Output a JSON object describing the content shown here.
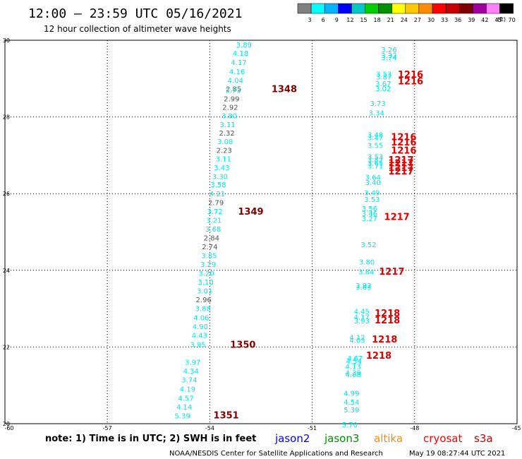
{
  "header": {
    "title": "12:00 – 23:59 UTC 05/16/2021",
    "subtitle": "12 hour collection of altimeter wave heights"
  },
  "colorbar": {
    "labels": [
      "3",
      "6",
      "9",
      "12",
      "15",
      "18",
      "21",
      "24",
      "27",
      "30",
      "33",
      "36",
      "39",
      "42",
      "45",
      "70"
    ],
    "unit": "(ft)",
    "colors": [
      "#808080",
      "#00ffff",
      "#00b4ff",
      "#0000ff",
      "#00c8c8",
      "#00d000",
      "#009000",
      "#ffff00",
      "#ffc800",
      "#ff8c00",
      "#ff0000",
      "#c80000",
      "#800000",
      "#a000a0",
      "#ff80ff",
      "#000000"
    ]
  },
  "axes": {
    "y_labels": [
      "30",
      "28",
      "26",
      "24",
      "22",
      "20"
    ],
    "x_labels": [
      "-60",
      "-57",
      "-54",
      "-51",
      "-48",
      "-45"
    ]
  },
  "wave_colors": {
    "cyan": "#00e6e6",
    "gray": "#555555",
    "red": "#e00000",
    "darkred": "#800000"
  },
  "observations": [
    {
      "lon": -53.0,
      "lat": 29.88,
      "value": "3.89",
      "color": "cyan"
    },
    {
      "lon": -53.1,
      "lat": 29.66,
      "value": "4.18",
      "color": "cyan"
    },
    {
      "lon": -53.15,
      "lat": 29.42,
      "value": "4.17",
      "color": "cyan"
    },
    {
      "lon": -53.2,
      "lat": 29.18,
      "value": "4.16",
      "color": "cyan"
    },
    {
      "lon": -53.25,
      "lat": 28.95,
      "value": "4.04",
      "color": "cyan"
    },
    {
      "lon": -53.3,
      "lat": 28.73,
      "value": "2.85",
      "color": "gray"
    },
    {
      "lon": -53.32,
      "lat": 28.69,
      "value": "3.73",
      "color": "cyan"
    },
    {
      "lon": -53.36,
      "lat": 28.47,
      "value": "2.99",
      "color": "gray"
    },
    {
      "lon": -53.4,
      "lat": 28.25,
      "value": "2.92",
      "color": "gray"
    },
    {
      "lon": -53.43,
      "lat": 28.03,
      "value": "3.80",
      "color": "cyan"
    },
    {
      "lon": -53.48,
      "lat": 27.8,
      "value": "3.11",
      "color": "cyan"
    },
    {
      "lon": -53.5,
      "lat": 27.58,
      "value": "2.32",
      "color": "gray"
    },
    {
      "lon": -53.55,
      "lat": 27.36,
      "value": "3.08",
      "color": "cyan"
    },
    {
      "lon": -53.58,
      "lat": 27.13,
      "value": "2.23",
      "color": "gray"
    },
    {
      "lon": -53.6,
      "lat": 26.91,
      "value": "3.11",
      "color": "cyan"
    },
    {
      "lon": -53.65,
      "lat": 26.68,
      "value": "3.43",
      "color": "cyan"
    },
    {
      "lon": -53.7,
      "lat": 26.45,
      "value": "3.30",
      "color": "cyan"
    },
    {
      "lon": -53.75,
      "lat": 26.23,
      "value": "3.58",
      "color": "cyan"
    },
    {
      "lon": -53.78,
      "lat": 25.99,
      "value": "4.21",
      "color": "cyan"
    },
    {
      "lon": -53.82,
      "lat": 25.76,
      "value": "2.79",
      "color": "gray"
    },
    {
      "lon": -53.85,
      "lat": 25.53,
      "value": "3.72",
      "color": "cyan"
    },
    {
      "lon": -53.88,
      "lat": 25.3,
      "value": "3.21",
      "color": "cyan"
    },
    {
      "lon": -53.9,
      "lat": 25.07,
      "value": "3.68",
      "color": "cyan"
    },
    {
      "lon": -53.95,
      "lat": 24.84,
      "value": "2.84",
      "color": "gray"
    },
    {
      "lon": -54.0,
      "lat": 24.61,
      "value": "2.74",
      "color": "gray"
    },
    {
      "lon": -54.02,
      "lat": 24.38,
      "value": "3.85",
      "color": "cyan"
    },
    {
      "lon": -54.05,
      "lat": 24.15,
      "value": "3.29",
      "color": "cyan"
    },
    {
      "lon": -54.1,
      "lat": 23.92,
      "value": "3.20",
      "color": "cyan"
    },
    {
      "lon": -54.12,
      "lat": 23.69,
      "value": "3.10",
      "color": "cyan"
    },
    {
      "lon": -54.15,
      "lat": 23.46,
      "value": "3.01",
      "color": "cyan"
    },
    {
      "lon": -54.18,
      "lat": 23.23,
      "value": "2.96",
      "color": "gray"
    },
    {
      "lon": -54.2,
      "lat": 23.0,
      "value": "3.88",
      "color": "cyan"
    },
    {
      "lon": -54.25,
      "lat": 22.76,
      "value": "4.06",
      "color": "cyan"
    },
    {
      "lon": -54.28,
      "lat": 22.53,
      "value": "4.90",
      "color": "cyan"
    },
    {
      "lon": -54.3,
      "lat": 22.3,
      "value": "4.43",
      "color": "cyan"
    },
    {
      "lon": -54.35,
      "lat": 22.06,
      "value": "3.95",
      "color": "cyan"
    },
    {
      "lon": -54.5,
      "lat": 21.6,
      "value": "3.97",
      "color": "cyan"
    },
    {
      "lon": -54.55,
      "lat": 21.37,
      "value": "4.34",
      "color": "cyan"
    },
    {
      "lon": -54.6,
      "lat": 21.14,
      "value": "3.74",
      "color": "cyan"
    },
    {
      "lon": -54.65,
      "lat": 20.9,
      "value": "4.19",
      "color": "cyan"
    },
    {
      "lon": -54.7,
      "lat": 20.66,
      "value": "4.57",
      "color": "cyan"
    },
    {
      "lon": -54.75,
      "lat": 20.43,
      "value": "4.14",
      "color": "cyan"
    },
    {
      "lon": -54.8,
      "lat": 20.2,
      "value": "5.39",
      "color": "cyan"
    },
    {
      "lon": -48.75,
      "lat": 29.75,
      "value": "3.26",
      "color": "cyan"
    },
    {
      "lon": -48.75,
      "lat": 29.6,
      "value": "3.32",
      "color": "cyan"
    },
    {
      "lon": -48.75,
      "lat": 29.55,
      "value": "3.74",
      "color": "cyan"
    },
    {
      "lon": -48.9,
      "lat": 29.12,
      "value": "3.53",
      "color": "cyan"
    },
    {
      "lon": -48.9,
      "lat": 29.04,
      "value": "3.87",
      "color": "cyan"
    },
    {
      "lon": -48.92,
      "lat": 28.87,
      "value": "3.67",
      "color": "cyan"
    },
    {
      "lon": -48.92,
      "lat": 28.74,
      "value": "3.02",
      "color": "cyan"
    },
    {
      "lon": -49.08,
      "lat": 28.35,
      "value": "3.73",
      "color": "cyan"
    },
    {
      "lon": -49.12,
      "lat": 28.1,
      "value": "3.34",
      "color": "cyan"
    },
    {
      "lon": -49.15,
      "lat": 27.53,
      "value": "3.48",
      "color": "cyan"
    },
    {
      "lon": -49.15,
      "lat": 27.46,
      "value": "3.47",
      "color": "cyan"
    },
    {
      "lon": -49.15,
      "lat": 27.26,
      "value": "3.55",
      "color": "cyan"
    },
    {
      "lon": -49.15,
      "lat": 26.96,
      "value": "3.53",
      "color": "cyan"
    },
    {
      "lon": -49.15,
      "lat": 26.88,
      "value": "3.82",
      "color": "cyan"
    },
    {
      "lon": -49.15,
      "lat": 26.8,
      "value": "3.65",
      "color": "cyan"
    },
    {
      "lon": -49.15,
      "lat": 26.72,
      "value": "3.71",
      "color": "cyan"
    },
    {
      "lon": -49.22,
      "lat": 26.43,
      "value": "3.64",
      "color": "cyan"
    },
    {
      "lon": -49.22,
      "lat": 26.29,
      "value": "3.40",
      "color": "cyan"
    },
    {
      "lon": -49.25,
      "lat": 26.02,
      "value": "3.49",
      "color": "cyan"
    },
    {
      "lon": -49.25,
      "lat": 25.85,
      "value": "3.53",
      "color": "cyan"
    },
    {
      "lon": -49.32,
      "lat": 25.61,
      "value": "3.56",
      "color": "cyan"
    },
    {
      "lon": -49.32,
      "lat": 25.48,
      "value": "3.46",
      "color": "cyan"
    },
    {
      "lon": -49.32,
      "lat": 25.35,
      "value": "3.27",
      "color": "cyan"
    },
    {
      "lon": -49.35,
      "lat": 24.67,
      "value": "3.52",
      "color": "cyan"
    },
    {
      "lon": -49.4,
      "lat": 24.22,
      "value": "3.80",
      "color": "cyan"
    },
    {
      "lon": -49.42,
      "lat": 23.96,
      "value": "3.84",
      "color": "cyan"
    },
    {
      "lon": -49.5,
      "lat": 23.6,
      "value": "3.92",
      "color": "cyan"
    },
    {
      "lon": -49.5,
      "lat": 23.55,
      "value": "3.63",
      "color": "cyan"
    },
    {
      "lon": -49.55,
      "lat": 22.93,
      "value": "4.45",
      "color": "cyan"
    },
    {
      "lon": -49.55,
      "lat": 22.78,
      "value": "4.17",
      "color": "cyan"
    },
    {
      "lon": -49.55,
      "lat": 22.68,
      "value": "3.93",
      "color": "cyan"
    },
    {
      "lon": -49.68,
      "lat": 22.25,
      "value": "4.12",
      "color": "cyan"
    },
    {
      "lon": -49.68,
      "lat": 22.17,
      "value": "4.03",
      "color": "cyan"
    },
    {
      "lon": -49.75,
      "lat": 21.7,
      "value": "4.67",
      "color": "cyan"
    },
    {
      "lon": -49.78,
      "lat": 21.63,
      "value": "4.54",
      "color": "cyan"
    },
    {
      "lon": -49.8,
      "lat": 21.49,
      "value": "4.13",
      "color": "cyan"
    },
    {
      "lon": -49.8,
      "lat": 21.33,
      "value": "4.39",
      "color": "cyan"
    },
    {
      "lon": -49.8,
      "lat": 21.28,
      "value": "4.68",
      "color": "cyan"
    },
    {
      "lon": -49.85,
      "lat": 20.79,
      "value": "4.99",
      "color": "cyan"
    },
    {
      "lon": -49.85,
      "lat": 20.56,
      "value": "4.54",
      "color": "cyan"
    },
    {
      "lon": -49.85,
      "lat": 20.36,
      "value": "5.39",
      "color": "cyan"
    },
    {
      "lon": -49.9,
      "lat": 19.97,
      "value": "5.70",
      "color": "cyan"
    }
  ],
  "pass_labels": [
    {
      "lon": -51.82,
      "lat": 28.73,
      "text": "1348",
      "color": "darkred"
    },
    {
      "lon": -52.8,
      "lat": 25.53,
      "text": "1349",
      "color": "darkred"
    },
    {
      "lon": -53.03,
      "lat": 22.06,
      "text": "1350",
      "color": "darkred"
    },
    {
      "lon": -53.52,
      "lat": 20.22,
      "text": "1351",
      "color": "darkred"
    },
    {
      "lon": -48.12,
      "lat": 29.11,
      "text": "1216",
      "color": "red"
    },
    {
      "lon": -48.12,
      "lat": 28.93,
      "text": "1216",
      "color": "red"
    },
    {
      "lon": -48.32,
      "lat": 27.48,
      "text": "1216",
      "color": "red"
    },
    {
      "lon": -48.32,
      "lat": 27.34,
      "text": "1216",
      "color": "red"
    },
    {
      "lon": -48.32,
      "lat": 27.13,
      "text": "1216",
      "color": "red"
    },
    {
      "lon": -48.4,
      "lat": 26.88,
      "text": "1217",
      "color": "red"
    },
    {
      "lon": -48.4,
      "lat": 26.8,
      "text": "1217",
      "color": "red"
    },
    {
      "lon": -48.4,
      "lat": 26.68,
      "text": "1217",
      "color": "red"
    },
    {
      "lon": -48.4,
      "lat": 26.58,
      "text": "1217",
      "color": "red"
    },
    {
      "lon": -48.52,
      "lat": 25.4,
      "text": "1217",
      "color": "red"
    },
    {
      "lon": -48.67,
      "lat": 23.97,
      "text": "1217",
      "color": "red"
    },
    {
      "lon": -48.8,
      "lat": 22.88,
      "text": "1218",
      "color": "red"
    },
    {
      "lon": -48.8,
      "lat": 22.7,
      "text": "1218",
      "color": "red"
    },
    {
      "lon": -48.88,
      "lat": 22.2,
      "text": "1218",
      "color": "red"
    },
    {
      "lon": -49.05,
      "lat": 21.78,
      "text": "1218",
      "color": "red"
    }
  ],
  "note": "note:  1) Time is in UTC;  2) SWH is in feet",
  "legend": [
    {
      "label": "jason2",
      "color": "#0000ff"
    },
    {
      "label": "jason3",
      "color": "#009000"
    },
    {
      "label": "altika",
      "color": "#ff8c00"
    },
    {
      "label": "cryosat",
      "color": "#ff0000"
    },
    {
      "label": "s3a",
      "color": "#c80000"
    }
  ],
  "footer": {
    "source": "NOAA/NESDIS Center for Satellite Applications and Research",
    "timestamp": "May 19 08:27:44 UTC 2021"
  }
}
